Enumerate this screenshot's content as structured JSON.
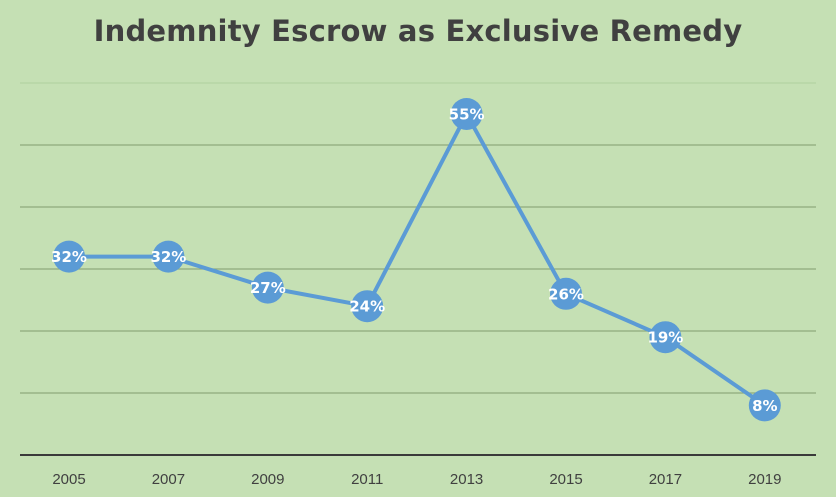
{
  "chart_data": {
    "type": "line",
    "title": "Indemnity Escrow as Exclusive Remedy",
    "xlabel": "",
    "ylabel": "",
    "categories": [
      "2005",
      "2007",
      "2009",
      "2011",
      "2013",
      "2015",
      "2017",
      "2019"
    ],
    "series": [
      {
        "values": [
          32,
          32,
          27,
          24,
          55,
          26,
          19,
          8
        ],
        "labels": [
          "32%",
          "32%",
          "27%",
          "24%",
          "55%",
          "26%",
          "19%",
          "8%"
        ]
      }
    ],
    "ylim": [
      0,
      60
    ],
    "grid": true,
    "legend": "none",
    "colors": {
      "background": "#c5e0b4",
      "line": "#5b9bd5",
      "marker": "#5b9bd5",
      "label": "#ffffff",
      "title": "#404040"
    }
  }
}
